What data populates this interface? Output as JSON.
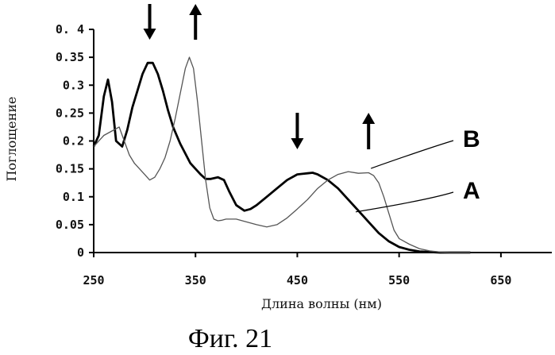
{
  "chart_data": {
    "type": "line",
    "title": "",
    "caption": "Фиг. 21",
    "xlabel": "Длина волны (нм)",
    "ylabel": "Поглощение",
    "xlim": [
      250,
      700
    ],
    "ylim": [
      0,
      0.4
    ],
    "x_ticks": [
      250,
      350,
      450,
      550,
      650
    ],
    "y_ticks": [
      0,
      0.05,
      0.1,
      0.15,
      0.2,
      0.25,
      0.3,
      0.35,
      0.4
    ],
    "y_tick_labels": [
      "0",
      "0.05",
      "0.1",
      "0.15",
      "0.2",
      "0.25",
      "0.3",
      "0.35",
      "0. 4"
    ],
    "grid": false,
    "series": [
      {
        "name": "A",
        "color": "#000000",
        "weight": "bold",
        "x": [
          250,
          255,
          260,
          264,
          268,
          272,
          278,
          283,
          288,
          293,
          298,
          303,
          308,
          313,
          318,
          323,
          328,
          335,
          345,
          355,
          360,
          365,
          372,
          378,
          383,
          390,
          398,
          404,
          410,
          420,
          430,
          440,
          450,
          460,
          465,
          470,
          480,
          490,
          500,
          510,
          520,
          530,
          540,
          550,
          560,
          570,
          580,
          590,
          600,
          620
        ],
        "y": [
          0.19,
          0.21,
          0.28,
          0.31,
          0.27,
          0.2,
          0.19,
          0.22,
          0.26,
          0.29,
          0.32,
          0.34,
          0.34,
          0.32,
          0.29,
          0.255,
          0.225,
          0.195,
          0.16,
          0.14,
          0.132,
          0.132,
          0.135,
          0.13,
          0.11,
          0.085,
          0.075,
          0.078,
          0.085,
          0.1,
          0.115,
          0.13,
          0.14,
          0.142,
          0.143,
          0.14,
          0.13,
          0.115,
          0.095,
          0.075,
          0.055,
          0.035,
          0.02,
          0.01,
          0.005,
          0.002,
          0.001,
          0,
          0,
          0
        ]
      },
      {
        "name": "B",
        "color": "#555555",
        "weight": "normal",
        "x": [
          250,
          255,
          260,
          265,
          270,
          275,
          280,
          285,
          290,
          295,
          300,
          305,
          310,
          315,
          320,
          325,
          330,
          335,
          340,
          344,
          348,
          352,
          356,
          360,
          364,
          368,
          372,
          376,
          380,
          390,
          400,
          410,
          420,
          430,
          440,
          450,
          460,
          470,
          480,
          490,
          500,
          510,
          520,
          525,
          530,
          535,
          540,
          545,
          550,
          560,
          570,
          580,
          590,
          600,
          620
        ],
        "y": [
          0.19,
          0.2,
          0.21,
          0.215,
          0.22,
          0.225,
          0.2,
          0.175,
          0.16,
          0.15,
          0.14,
          0.13,
          0.135,
          0.15,
          0.17,
          0.2,
          0.24,
          0.285,
          0.33,
          0.35,
          0.33,
          0.27,
          0.2,
          0.13,
          0.08,
          0.06,
          0.057,
          0.058,
          0.06,
          0.06,
          0.055,
          0.05,
          0.046,
          0.05,
          0.062,
          0.078,
          0.095,
          0.115,
          0.13,
          0.14,
          0.145,
          0.142,
          0.143,
          0.138,
          0.125,
          0.1,
          0.07,
          0.04,
          0.025,
          0.015,
          0.007,
          0.003,
          0.001,
          0,
          0
        ]
      }
    ],
    "arrows": [
      {
        "x": 305,
        "direction": "down"
      },
      {
        "x": 350,
        "direction": "up"
      },
      {
        "x": 450,
        "direction": "down"
      },
      {
        "x": 520,
        "direction": "up"
      }
    ]
  }
}
